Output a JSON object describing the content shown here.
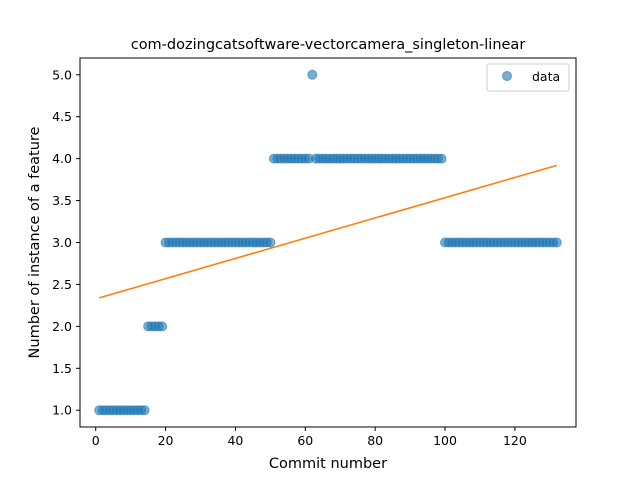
{
  "chart_data": {
    "type": "scatter",
    "title": "com-dozingcatsoftware-vectorcamera_singleton-linear",
    "xlabel": "Commit number",
    "ylabel": "Number of instance of a feature",
    "xlim": [
      -4.5,
      137.5
    ],
    "ylim": [
      0.8,
      5.2
    ],
    "xticks": [
      0,
      20,
      40,
      60,
      80,
      100,
      120
    ],
    "yticks": [
      1.0,
      1.5,
      2.0,
      2.5,
      3.0,
      3.5,
      4.0,
      4.5,
      5.0
    ],
    "ytick_labels": [
      "1.0",
      "1.5",
      "2.0",
      "2.5",
      "3.0",
      "3.5",
      "4.0",
      "4.5",
      "5.0"
    ],
    "legend": {
      "position": "top-right",
      "entries": [
        "data"
      ]
    },
    "colors": {
      "data": "#1f77b4",
      "fit": "#ff7f0e"
    },
    "series": [
      {
        "name": "data",
        "segments": [
          {
            "x_from": 1,
            "x_to": 14,
            "y": 1
          },
          {
            "x_from": 15,
            "x_to": 19,
            "y": 2
          },
          {
            "x_from": 20,
            "x_to": 50,
            "y": 3
          },
          {
            "x_from": 51,
            "x_to": 61,
            "y": 4
          },
          {
            "x_from": 62,
            "x_to": 62,
            "y": 5
          },
          {
            "x_from": 63,
            "x_to": 99,
            "y": 4
          },
          {
            "x_from": 100,
            "x_to": 132,
            "y": 3
          }
        ]
      }
    ],
    "fit_line": {
      "x": [
        1,
        132
      ],
      "y": [
        2.34,
        3.92
      ]
    }
  }
}
